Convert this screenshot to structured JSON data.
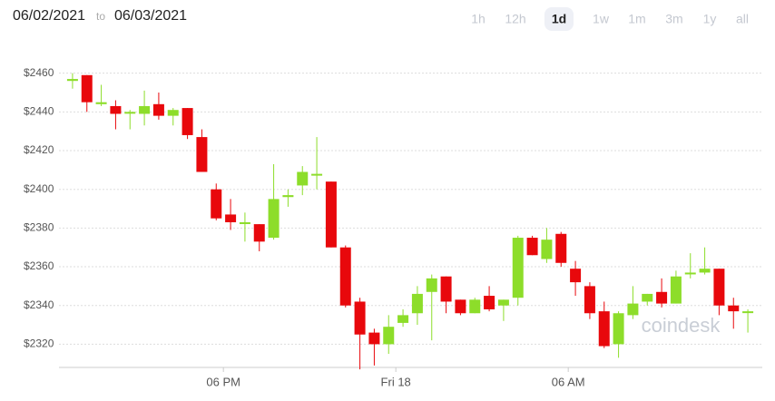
{
  "header": {
    "date_from": "06/02/2021",
    "to": "to",
    "date_to": "06/03/2021",
    "ranges": [
      "1h",
      "12h",
      "1d",
      "1w",
      "1m",
      "3m",
      "1y",
      "all"
    ],
    "active_range": "1d"
  },
  "watermark": "coindesk",
  "chart_data": {
    "type": "candlestick",
    "up_color": "#8ddd2a",
    "down_color": "#e8080c",
    "grid": true,
    "ylim": [
      2308,
      2465
    ],
    "yticks": [
      {
        "value": 2320,
        "label": "$2320"
      },
      {
        "value": 2340,
        "label": "$2340"
      },
      {
        "value": 2360,
        "label": "$2360"
      },
      {
        "value": 2380,
        "label": "$2380"
      },
      {
        "value": 2400,
        "label": "$2400"
      },
      {
        "value": 2420,
        "label": "$2420"
      },
      {
        "value": 2440,
        "label": "$2440"
      },
      {
        "value": 2460,
        "label": "$2460"
      }
    ],
    "xticks": [
      {
        "value": 10.5,
        "label": "06 PM"
      },
      {
        "value": 22.5,
        "label": "Fri 18"
      },
      {
        "value": 34.5,
        "label": "06 AM"
      }
    ],
    "open": [
      2456,
      2459,
      2444,
      2443,
      2440,
      2439,
      2444,
      2438,
      2442,
      2427,
      2400,
      2387,
      2383,
      2382,
      2375,
      2396,
      2402,
      2408,
      2404,
      2370,
      2342,
      2326,
      2320,
      2331,
      2336,
      2347,
      2355,
      2343,
      2336,
      2345,
      2340,
      2344,
      2375,
      2364,
      2377,
      2359,
      2350,
      2337,
      2320,
      2335,
      2342,
      2347,
      2341,
      2357,
      2357,
      2359,
      2340,
      2337
    ],
    "high": [
      2460,
      2459,
      2454,
      2446,
      2441,
      2451,
      2450,
      2442,
      2442,
      2431,
      2403,
      2395,
      2388,
      2382,
      2413,
      2400,
      2412,
      2427,
      2404,
      2371,
      2344,
      2328,
      2335,
      2338,
      2350,
      2356,
      2355,
      2343,
      2344,
      2350,
      2343,
      2376,
      2376,
      2380,
      2378,
      2363,
      2352,
      2342,
      2337,
      2350,
      2346,
      2354,
      2358,
      2367,
      2370,
      2359,
      2344,
      2338
    ],
    "low": [
      2452,
      2440,
      2443,
      2431,
      2431,
      2433,
      2436,
      2433,
      2426,
      2409,
      2384,
      2379,
      2373,
      2368,
      2374,
      2391,
      2397,
      2400,
      2370,
      2339,
      2307,
      2309,
      2315,
      2329,
      2330,
      2322,
      2336,
      2335,
      2336,
      2337,
      2332,
      2340,
      2366,
      2362,
      2360,
      2345,
      2333,
      2318,
      2313,
      2333,
      2340,
      2339,
      2341,
      2354,
      2356,
      2335,
      2328,
      2326
    ],
    "close": [
      2457,
      2445,
      2445,
      2439,
      2440,
      2443,
      2438,
      2441,
      2428,
      2409,
      2385,
      2383,
      2383,
      2373,
      2395,
      2397,
      2409,
      2408,
      2370,
      2340,
      2325,
      2320,
      2329,
      2335,
      2346,
      2354,
      2342,
      2336,
      2343,
      2338,
      2343,
      2375,
      2366,
      2374,
      2362,
      2352,
      2336,
      2319,
      2336,
      2341,
      2346,
      2341,
      2355,
      2357,
      2359,
      2340,
      2337,
      2337
    ]
  }
}
